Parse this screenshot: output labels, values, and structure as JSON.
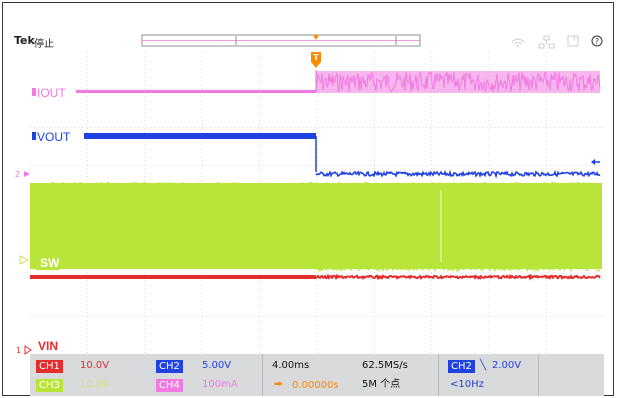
{
  "brand": "Tek",
  "status": "停止",
  "colors": {
    "ch1": "#e42d2d",
    "ch2": "#2142e3",
    "ch3": "#b9e53a",
    "ch4": "#f07ae0",
    "trigger": "#ff8a00",
    "grid": "#c9c9c9"
  },
  "icons": [
    "tek-logo",
    "wifi-icon",
    "network-icon",
    "screen-icon",
    "help-icon",
    "trigger-marker-icon",
    "trigger-level-arrow-icon",
    "slope-icon"
  ],
  "labels": {
    "iout": "IOUT",
    "vout": "VOUT",
    "sw": "SW",
    "vin": "VIN",
    "marker2": "2",
    "marker1": "1"
  },
  "readout": {
    "ch1": {
      "name": "CH1",
      "scale": "10.0V"
    },
    "ch2": {
      "name": "CH2",
      "scale": "5.00V"
    },
    "ch3": {
      "name": "CH3",
      "scale": "10.0V"
    },
    "ch4": {
      "name": "CH4",
      "scale": "100mA"
    },
    "timebase": "4.00ms",
    "trigger_pos": "0.00000s",
    "sample_rate": "62.5MS/s",
    "record_length": "5M 个点",
    "trigger_src": "CH2",
    "trigger_level": "2.00V",
    "trigger_freq": "<10Hz"
  }
}
